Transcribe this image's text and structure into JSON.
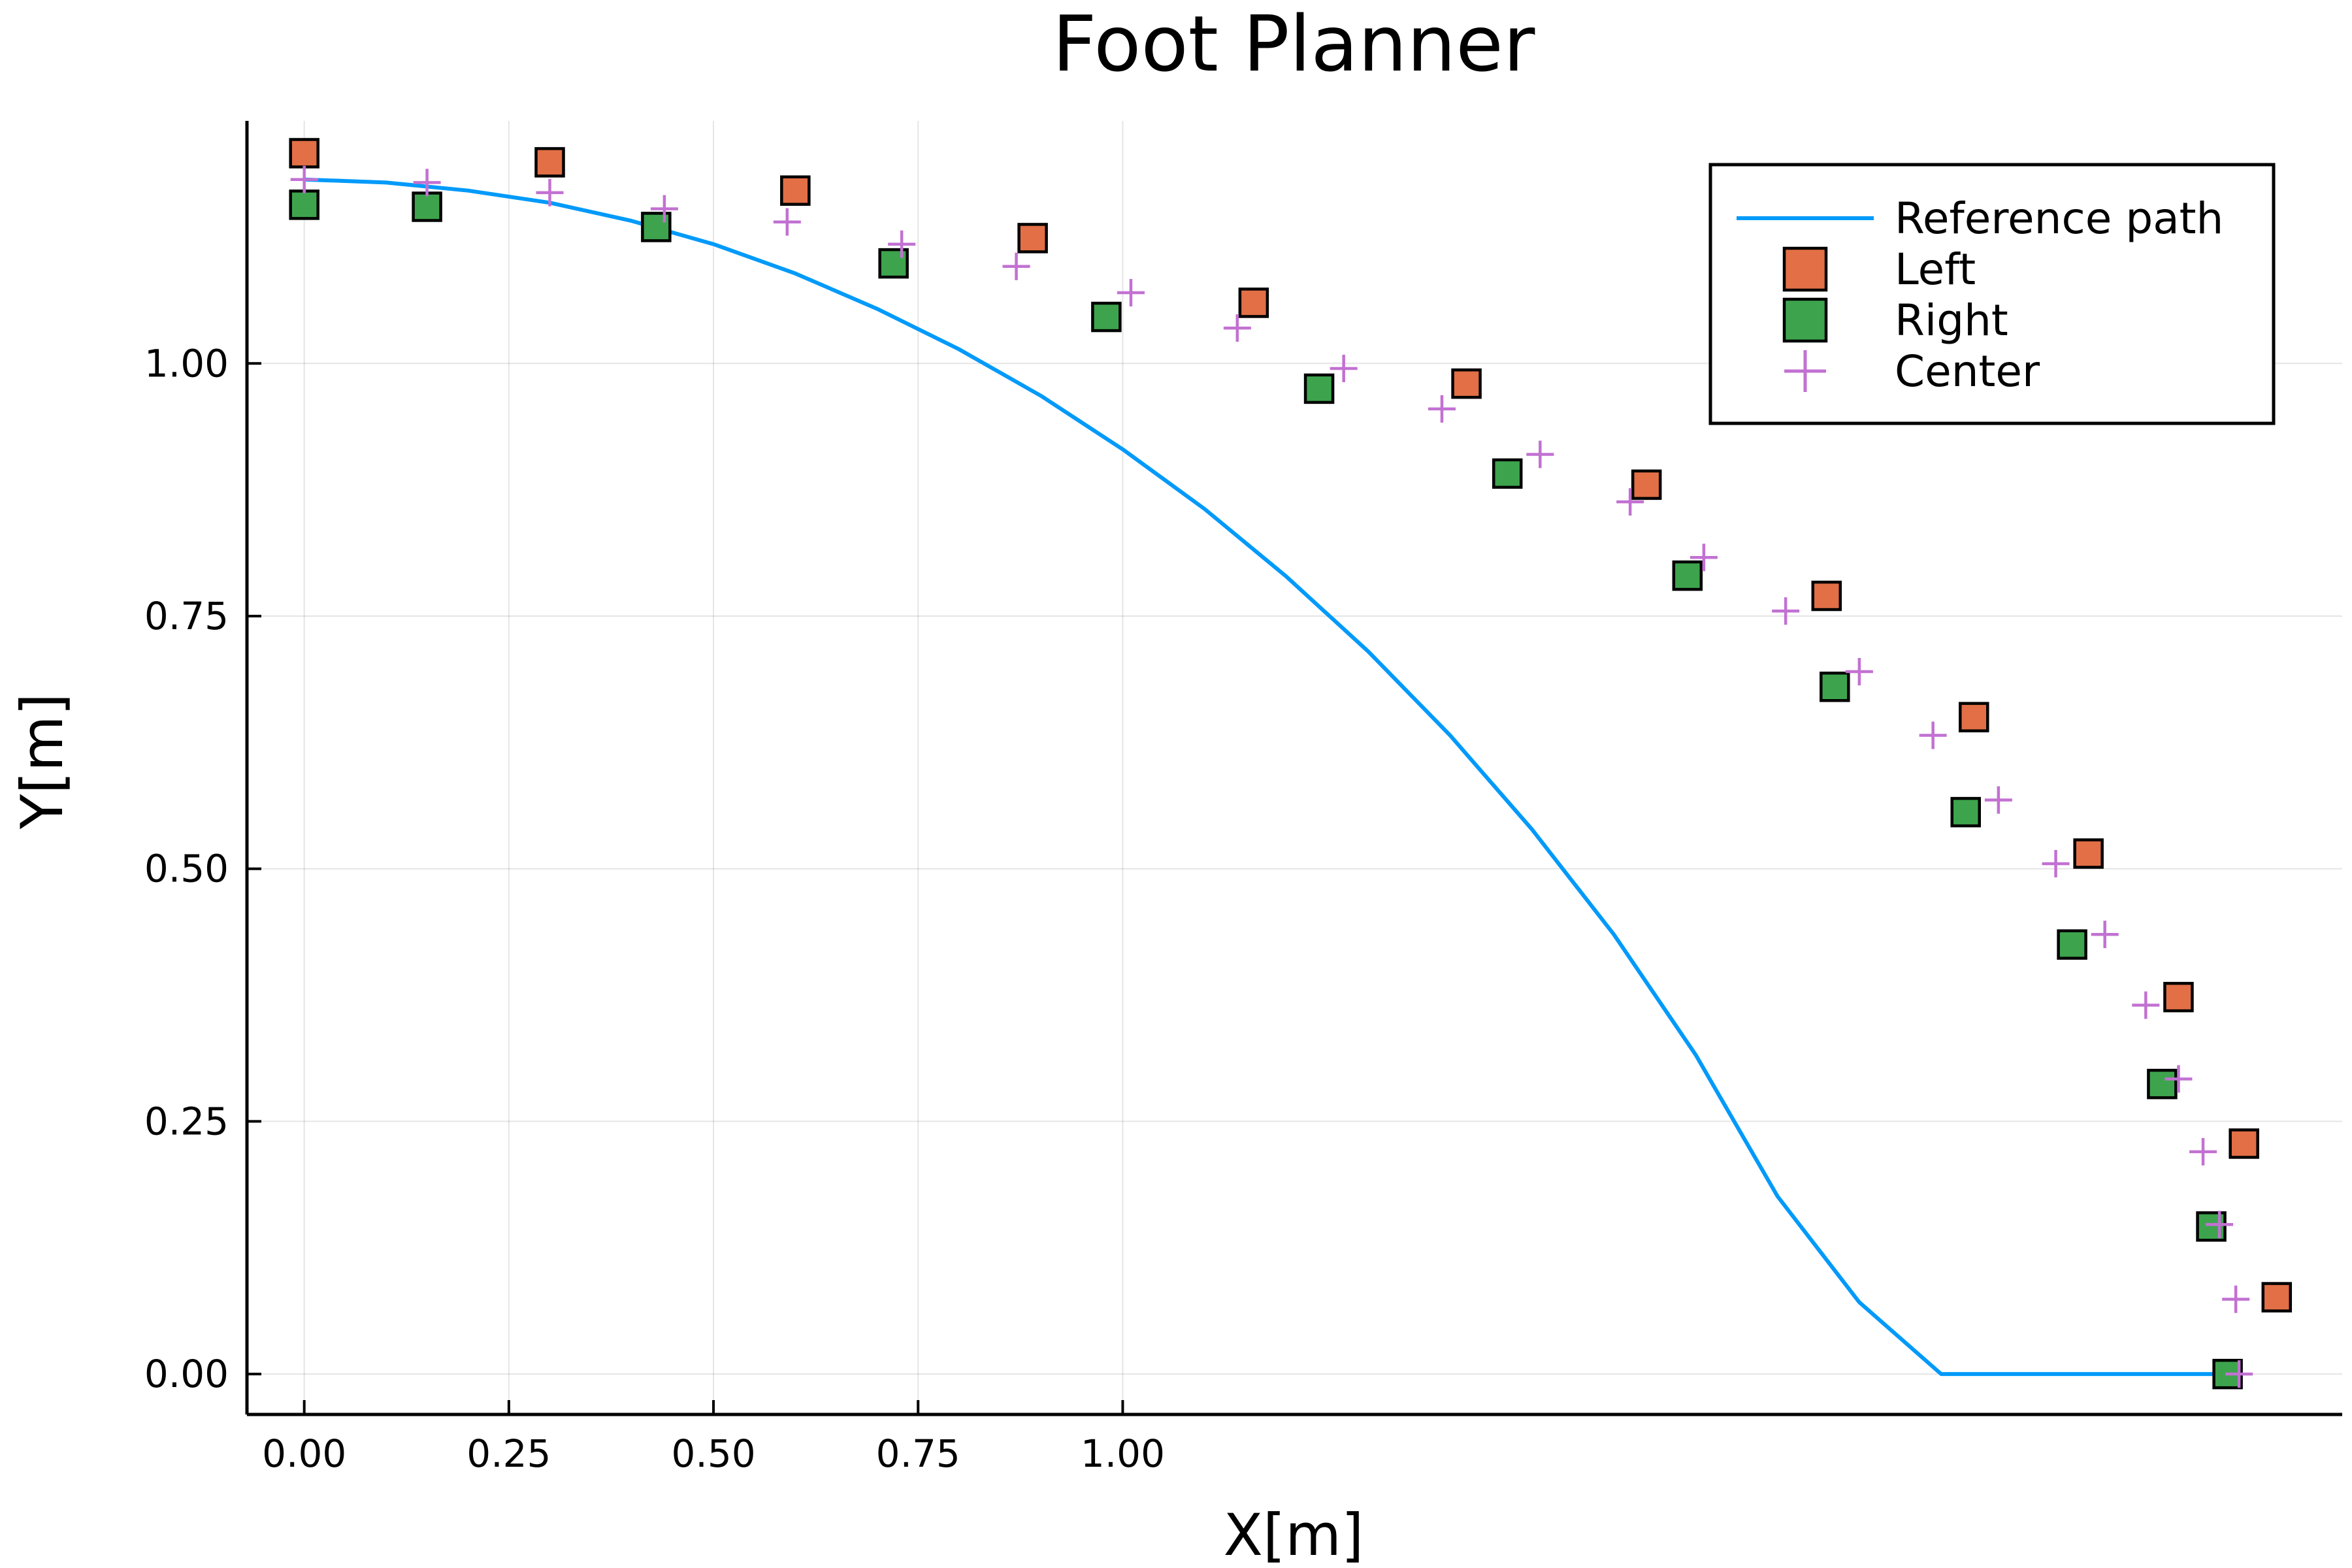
{
  "chart_data": {
    "type": "scatter",
    "title": "Foot Planner",
    "xlabel": "X[m]",
    "ylabel": "Y[m]",
    "xlim": [
      -0.07,
      2.49
    ],
    "ylim": [
      -0.04,
      1.24
    ],
    "grid": true,
    "legend_position": "top-right",
    "xticks": [
      0.0,
      0.25,
      0.5,
      0.75,
      1.0
    ],
    "xtick_labels": [
      "0.00",
      "0.25",
      "0.50",
      "0.75",
      "1.00"
    ],
    "yticks": [
      0.0,
      0.25,
      0.5,
      0.75,
      1.0
    ],
    "ytick_labels": [
      "0.00",
      "0.25",
      "0.50",
      "0.75",
      "1.00"
    ],
    "series": [
      {
        "name": "Reference path",
        "kind": "line",
        "color": "#009AFA",
        "x": [
          0.0,
          0.1,
          0.2,
          0.3,
          0.4,
          0.5,
          0.6,
          0.7,
          0.8,
          0.9,
          1.0,
          1.1,
          1.2,
          1.3,
          1.4,
          1.5,
          1.6,
          1.7,
          1.8,
          1.9,
          2.0,
          2.1,
          2.2,
          2.3,
          2.36,
          2.364
        ],
        "y": [
          1.182,
          1.179,
          1.171,
          1.159,
          1.141,
          1.118,
          1.089,
          1.054,
          1.014,
          0.968,
          0.915,
          0.856,
          0.789,
          0.715,
          0.632,
          0.539,
          0.435,
          0.316,
          0.176,
          0.071,
          0.0,
          0.0,
          0.0,
          0.0,
          0.0,
          0.0
        ]
      },
      {
        "name": "Left",
        "kind": "square",
        "color": "#E26F46",
        "x": [
          0.0,
          0.3,
          0.6,
          0.89,
          1.16,
          1.42,
          1.64,
          1.86,
          2.04,
          2.18,
          2.29,
          2.37,
          2.41
        ],
        "y": [
          1.208,
          1.199,
          1.171,
          1.124,
          1.06,
          0.98,
          0.88,
          0.77,
          0.65,
          0.515,
          0.373,
          0.228,
          0.076
        ]
      },
      {
        "name": "Right",
        "kind": "square",
        "color": "#3DA44D",
        "x": [
          0.0,
          0.15,
          0.43,
          0.72,
          0.98,
          1.24,
          1.47,
          1.69,
          1.87,
          2.03,
          2.16,
          2.27,
          2.33,
          2.35
        ],
        "y": [
          1.157,
          1.155,
          1.135,
          1.099,
          1.046,
          0.975,
          0.891,
          0.79,
          0.68,
          0.556,
          0.425,
          0.287,
          0.146,
          0.0
        ]
      },
      {
        "name": "Center",
        "kind": "plus",
        "color": "#C271D2",
        "x": [
          0.0,
          0.15,
          0.3,
          0.44,
          0.59,
          0.73,
          0.87,
          1.01,
          1.14,
          1.27,
          1.39,
          1.51,
          1.62,
          1.71,
          1.81,
          1.9,
          1.99,
          2.07,
          2.14,
          2.2,
          2.25,
          2.29,
          2.32,
          2.34,
          2.36,
          2.364
        ],
        "y": [
          1.182,
          1.179,
          1.169,
          1.153,
          1.14,
          1.118,
          1.096,
          1.07,
          1.035,
          0.995,
          0.955,
          0.91,
          0.863,
          0.808,
          0.755,
          0.695,
          0.632,
          0.568,
          0.505,
          0.435,
          0.365,
          0.292,
          0.22,
          0.148,
          0.074,
          0.0
        ]
      }
    ]
  }
}
